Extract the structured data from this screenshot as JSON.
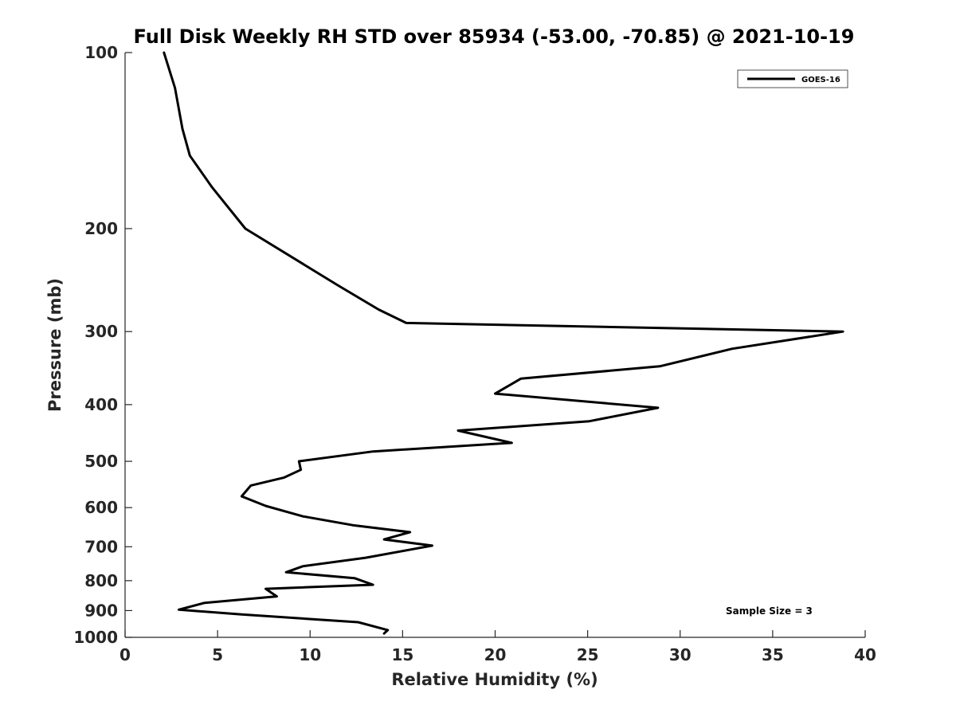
{
  "chart_data": {
    "type": "line",
    "title": "Full Disk Weekly RH STD over 85934 (-53.00, -70.85) @ 2021-10-19",
    "xlabel": "Relative Humidity (%)",
    "ylabel": "Pressure (mb)",
    "xlim": [
      0,
      40
    ],
    "ylim": [
      100,
      1000
    ],
    "y_scale": "log",
    "y_reversed": true,
    "grid": false,
    "legend_position": "top-right",
    "x_ticks": [
      0,
      5,
      10,
      15,
      20,
      25,
      30,
      35,
      40
    ],
    "y_ticks": [
      100,
      200,
      300,
      400,
      500,
      600,
      700,
      800,
      900,
      1000
    ],
    "annotation": "Sample Size = 3",
    "series": [
      {
        "name": "GOES-16",
        "color": "#000000",
        "points": [
          [
            2.1,
            100
          ],
          [
            2.7,
            115
          ],
          [
            3.1,
            135
          ],
          [
            3.5,
            150
          ],
          [
            4.7,
            170
          ],
          [
            6.5,
            200
          ],
          [
            11.5,
            250
          ],
          [
            13.7,
            275
          ],
          [
            15.2,
            290
          ],
          [
            38.8,
            300
          ],
          [
            32.8,
            321
          ],
          [
            28.9,
            344
          ],
          [
            21.4,
            361
          ],
          [
            20.0,
            383
          ],
          [
            28.8,
            405
          ],
          [
            25.1,
            427
          ],
          [
            18.0,
            443
          ],
          [
            20.9,
            465
          ],
          [
            13.4,
            481
          ],
          [
            9.4,
            500
          ],
          [
            9.5,
            517
          ],
          [
            8.6,
            533
          ],
          [
            6.8,
            550
          ],
          [
            6.3,
            574
          ],
          [
            7.6,
            596
          ],
          [
            9.6,
            621
          ],
          [
            12.3,
            643
          ],
          [
            15.4,
            661
          ],
          [
            14.0,
            680
          ],
          [
            16.6,
            697
          ],
          [
            15.2,
            710
          ],
          [
            13.0,
            731
          ],
          [
            9.6,
            756
          ],
          [
            8.7,
            774
          ],
          [
            12.4,
            792
          ],
          [
            13.4,
            813
          ],
          [
            7.6,
            826
          ],
          [
            8.2,
            851
          ],
          [
            4.3,
            873
          ],
          [
            2.9,
            897
          ],
          [
            6.3,
            914
          ],
          [
            12.6,
            942
          ],
          [
            14.2,
            972
          ],
          [
            14.0,
            985
          ]
        ]
      }
    ]
  }
}
